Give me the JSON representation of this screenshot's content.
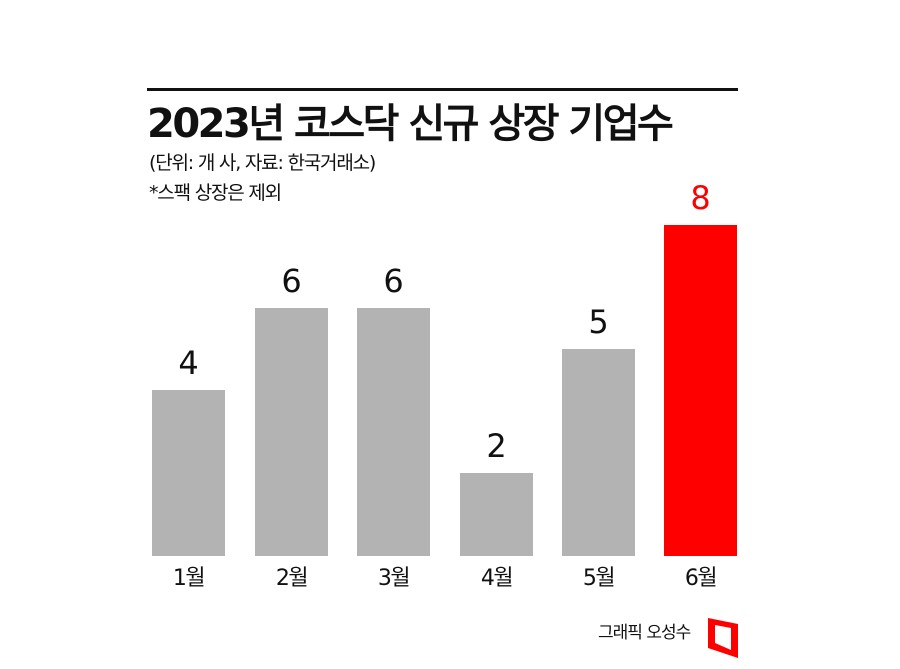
{
  "header": {
    "title": "2023년 코스닥 신규 상장 기업수",
    "unit_source": "(단위: 개 사, 자료: 한국거래소)",
    "note": "*스팩 상장은 제외"
  },
  "footer": {
    "credit": "그래픽 오성수",
    "logo": "red-frame-logo-icon"
  },
  "colors": {
    "default_bar": "#b3b3b3",
    "highlight_bar": "#ff0000",
    "highlight_label": "#ff0000",
    "text": "#111111"
  },
  "chart_data": {
    "type": "bar",
    "title": "2023년 코스닥 신규 상장 기업수",
    "subtitle": "(단위: 개 사, 자료: 한국거래소)",
    "annotation": "*스팩 상장은 제외",
    "xlabel": "",
    "ylabel": "개 사",
    "categories": [
      "1월",
      "2월",
      "3월",
      "4월",
      "5월",
      "6월"
    ],
    "values": [
      4,
      6,
      6,
      2,
      5,
      8
    ],
    "value_labels": [
      "4",
      "6",
      "6",
      "2",
      "5",
      "8"
    ],
    "highlight_index": 5,
    "ylim": [
      0,
      8
    ],
    "grid": false,
    "legend": "none"
  }
}
